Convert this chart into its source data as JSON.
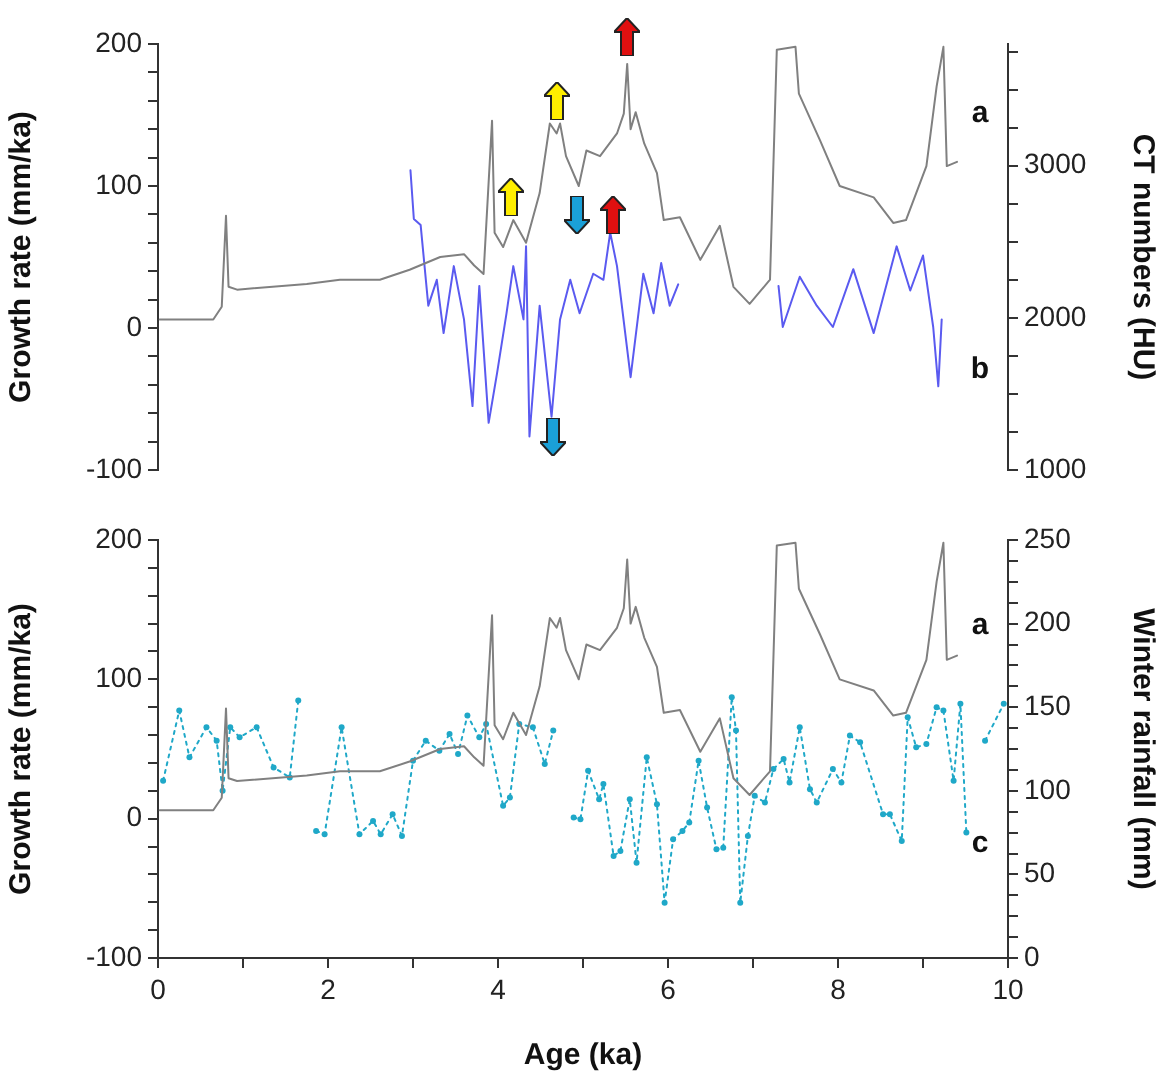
{
  "chart_data": [
    {
      "type": "line",
      "xlim": [
        0,
        10
      ],
      "tick_labels": "y",
      "ylabel": "Growth rate (mm/ka)",
      "y2label": "CT numbers (HU)",
      "ylim": [
        -100,
        200
      ],
      "yticks": [
        -100,
        {
          "value": -80,
          "label": null
        },
        {
          "value": -60,
          "label": null
        },
        {
          "value": -40,
          "label": null
        },
        {
          "value": -20,
          "label": null
        },
        0,
        {
          "value": 20,
          "label": null
        },
        {
          "value": 40,
          "label": null
        },
        {
          "value": 60,
          "label": null
        },
        {
          "value": 80,
          "label": null
        },
        100,
        {
          "value": 120,
          "label": null
        },
        {
          "value": 140,
          "label": null
        },
        {
          "value": 160,
          "label": null
        },
        {
          "value": 180,
          "label": null
        },
        200
      ],
      "y2lim": [
        1000,
        3800
      ],
      "y2ticks": [
        1000,
        {
          "value": 1250,
          "label": null
        },
        {
          "value": 1500,
          "label": null
        },
        {
          "value": 1750,
          "label": null
        },
        2000,
        {
          "value": 2250,
          "label": null
        },
        {
          "value": 2500,
          "label": null
        },
        {
          "value": 2750,
          "label": null
        },
        3000,
        {
          "value": 3250,
          "label": null
        },
        {
          "value": 3500,
          "label": null
        },
        {
          "value": 3750,
          "label": null
        }
      ],
      "series": [
        {
          "type": "line",
          "color": "#808080",
          "line_style": "solid",
          "x": [
            0.02,
            0.65,
            0.75,
            0.8,
            0.83,
            0.93,
            1.75,
            2.14,
            2.61,
            2.96,
            3.32,
            3.6,
            3.72,
            3.83,
            3.93,
            3.96,
            4.06,
            4.18,
            4.33,
            4.49,
            4.61,
            4.69,
            4.73,
            4.8,
            4.95,
            5.04,
            5.2,
            5.4,
            5.48,
            5.52,
            5.56,
            5.62,
            5.72,
            5.87,
            5.95,
            6.14,
            6.38,
            6.61,
            6.77,
            6.96,
            7.2,
            7.28,
            7.5,
            7.54,
            7.79,
            8.02,
            8.42,
            8.65,
            8.8,
            9.04,
            9.16,
            9.24,
            9.28,
            9.4
          ],
          "values": [
            6,
            6,
            15,
            79,
            29,
            27,
            31,
            34,
            34,
            41,
            50,
            52,
            44,
            38,
            146,
            67,
            57,
            76,
            60,
            95,
            144,
            137,
            144,
            121,
            100,
            125,
            121,
            137,
            151,
            186,
            140,
            152,
            130,
            109,
            76,
            78,
            48,
            72,
            29,
            17,
            34,
            196,
            198,
            165,
            132,
            100,
            92,
            74,
            76,
            114,
            170,
            198,
            114,
            117
          ]
        },
        {
          "type": "line",
          "color": "#5a5af0",
          "line_style": "solid",
          "axis": "y2",
          "x": [
            2.97,
            3.01,
            3.09,
            3.18,
            3.28,
            3.36,
            3.48,
            3.6,
            3.7,
            3.78,
            3.89,
            3.99,
            4.1,
            4.18,
            4.3,
            4.33,
            4.37,
            4.49,
            4.63,
            4.73,
            4.85,
            4.96,
            5.12,
            5.24,
            5.32,
            5.4,
            5.56,
            5.71,
            5.83,
            5.92,
            6.02,
            6.12,
            6.7,
            7.3,
            7.35,
            7.55,
            7.75,
            7.94,
            8.18,
            8.42,
            8.69,
            8.85,
            9.0,
            9.12,
            9.18,
            9.22
          ],
          "values": [
            2970,
            2650,
            2610,
            2080,
            2250,
            1900,
            2340,
            1990,
            1420,
            2210,
            1310,
            1640,
            2030,
            2340,
            1990,
            2470,
            1220,
            2080,
            1350,
            1990,
            2250,
            2030,
            2290,
            2250,
            2560,
            2340,
            1610,
            2290,
            2030,
            2360,
            2080,
            2220,
            null,
            2210,
            1940,
            2270,
            2080,
            1940,
            2320,
            1900,
            2470,
            2180,
            2410,
            1940,
            1550,
            1990
          ]
        }
      ],
      "annotations": [
        "a",
        "b"
      ]
    },
    {
      "type": "line",
      "xlim": [
        0,
        10
      ],
      "xlabel": "Age (ka)",
      "ylabel": "Growth rate (mm/ka)",
      "y2label": "Winter rainfall (mm)",
      "xticks": [
        0,
        {
          "value": 1,
          "label": null
        },
        2,
        {
          "value": 3,
          "label": null
        },
        4,
        {
          "value": 5,
          "label": null
        },
        6,
        {
          "value": 7,
          "label": null
        },
        8,
        {
          "value": 9,
          "label": null
        },
        10
      ],
      "ylim": [
        -100,
        200
      ],
      "yticks": [
        -100,
        {
          "value": -80,
          "label": null
        },
        {
          "value": -60,
          "label": null
        },
        {
          "value": -40,
          "label": null
        },
        {
          "value": -20,
          "label": null
        },
        0,
        {
          "value": 20,
          "label": null
        },
        {
          "value": 40,
          "label": null
        },
        {
          "value": 60,
          "label": null
        },
        {
          "value": 80,
          "label": null
        },
        100,
        {
          "value": 120,
          "label": null
        },
        {
          "value": 140,
          "label": null
        },
        {
          "value": 160,
          "label": null
        },
        {
          "value": 180,
          "label": null
        },
        200
      ],
      "y2lim": [
        0,
        250
      ],
      "y2ticks": [
        0,
        {
          "value": 12.5,
          "label": null
        },
        {
          "value": 25,
          "label": null
        },
        {
          "value": 37.5,
          "label": null
        },
        50,
        {
          "value": 62.5,
          "label": null
        },
        {
          "value": 75,
          "label": null
        },
        {
          "value": 87.5,
          "label": null
        },
        100,
        {
          "value": 112.5,
          "label": null
        },
        {
          "value": 125,
          "label": null
        },
        {
          "value": 137.5,
          "label": null
        },
        150,
        {
          "value": 162.5,
          "label": null
        },
        {
          "value": 175,
          "label": null
        },
        {
          "value": 187.5,
          "label": null
        },
        200,
        {
          "value": 212.5,
          "label": null
        },
        {
          "value": 225,
          "label": null
        },
        {
          "value": 237.5,
          "label": null
        },
        250
      ],
      "series": [
        {
          "type": "line",
          "color": "#808080",
          "line_style": "solid",
          "x": [
            0.02,
            0.65,
            0.75,
            0.8,
            0.83,
            0.93,
            1.75,
            2.14,
            2.61,
            2.96,
            3.32,
            3.6,
            3.72,
            3.83,
            3.93,
            3.96,
            4.06,
            4.18,
            4.33,
            4.49,
            4.61,
            4.69,
            4.73,
            4.8,
            4.95,
            5.04,
            5.2,
            5.4,
            5.48,
            5.52,
            5.56,
            5.62,
            5.72,
            5.87,
            5.95,
            6.14,
            6.38,
            6.61,
            6.77,
            6.96,
            7.2,
            7.28,
            7.5,
            7.54,
            7.79,
            8.02,
            8.42,
            8.65,
            8.8,
            9.04,
            9.16,
            9.24,
            9.28,
            9.4
          ],
          "values": [
            6,
            6,
            15,
            79,
            29,
            27,
            31,
            34,
            34,
            41,
            50,
            52,
            44,
            38,
            146,
            67,
            57,
            76,
            60,
            95,
            144,
            137,
            144,
            121,
            100,
            125,
            121,
            137,
            151,
            186,
            140,
            152,
            130,
            109,
            76,
            78,
            48,
            72,
            29,
            17,
            34,
            196,
            198,
            165,
            132,
            100,
            92,
            74,
            76,
            114,
            170,
            198,
            114,
            117
          ]
        },
        {
          "type": "line",
          "color": "#1fa8c8",
          "line_style": "dotted",
          "marker": "circle",
          "axis": "y2",
          "x": [
            0.06,
            0.25,
            0.37,
            0.57,
            0.69,
            0.76,
            0.85,
            0.96,
            1.16,
            1.36,
            1.55,
            1.65,
            1.75,
            1.86,
            1.96,
            2.16,
            2.37,
            2.53,
            2.62,
            2.76,
            2.87,
            3.0,
            3.15,
            3.31,
            3.43,
            3.53,
            3.64,
            3.78,
            3.86,
            4.06,
            4.14,
            4.25,
            4.41,
            4.55,
            4.65,
            4.77,
            4.89,
            4.97,
            5.06,
            5.19,
            5.24,
            5.36,
            5.44,
            5.55,
            5.63,
            5.75,
            5.87,
            5.96,
            6.06,
            6.17,
            6.25,
            6.36,
            6.46,
            6.57,
            6.65,
            6.75,
            6.8,
            6.85,
            6.94,
            7.02,
            7.14,
            7.24,
            7.36,
            7.43,
            7.55,
            7.67,
            7.75,
            7.94,
            8.04,
            8.14,
            8.26,
            8.53,
            8.61,
            8.75,
            8.82,
            8.92,
            9.04,
            9.16,
            9.24,
            9.36,
            9.44,
            9.51,
            9.62,
            9.73,
            9.95
          ],
          "values": [
            106,
            148,
            120,
            138,
            130,
            100,
            138,
            132,
            138,
            114,
            108,
            154,
            null,
            76,
            74,
            138,
            74,
            82,
            74,
            86,
            73,
            118,
            130,
            124,
            134,
            122,
            145,
            132,
            140,
            91,
            96,
            140,
            138,
            116,
            136,
            null,
            84,
            83,
            112,
            95,
            104,
            61,
            64,
            95,
            57,
            120,
            92,
            33,
            71,
            76,
            81,
            118,
            90,
            65,
            66,
            156,
            136,
            33,
            73,
            97,
            93,
            113,
            119,
            105,
            138,
            101,
            93,
            113,
            105,
            133,
            129,
            86,
            86,
            70,
            144,
            126,
            128,
            150,
            148,
            106,
            152,
            75,
            null,
            130,
            152
          ]
        }
      ],
      "annotations": [
        "a",
        "c"
      ]
    }
  ]
}
